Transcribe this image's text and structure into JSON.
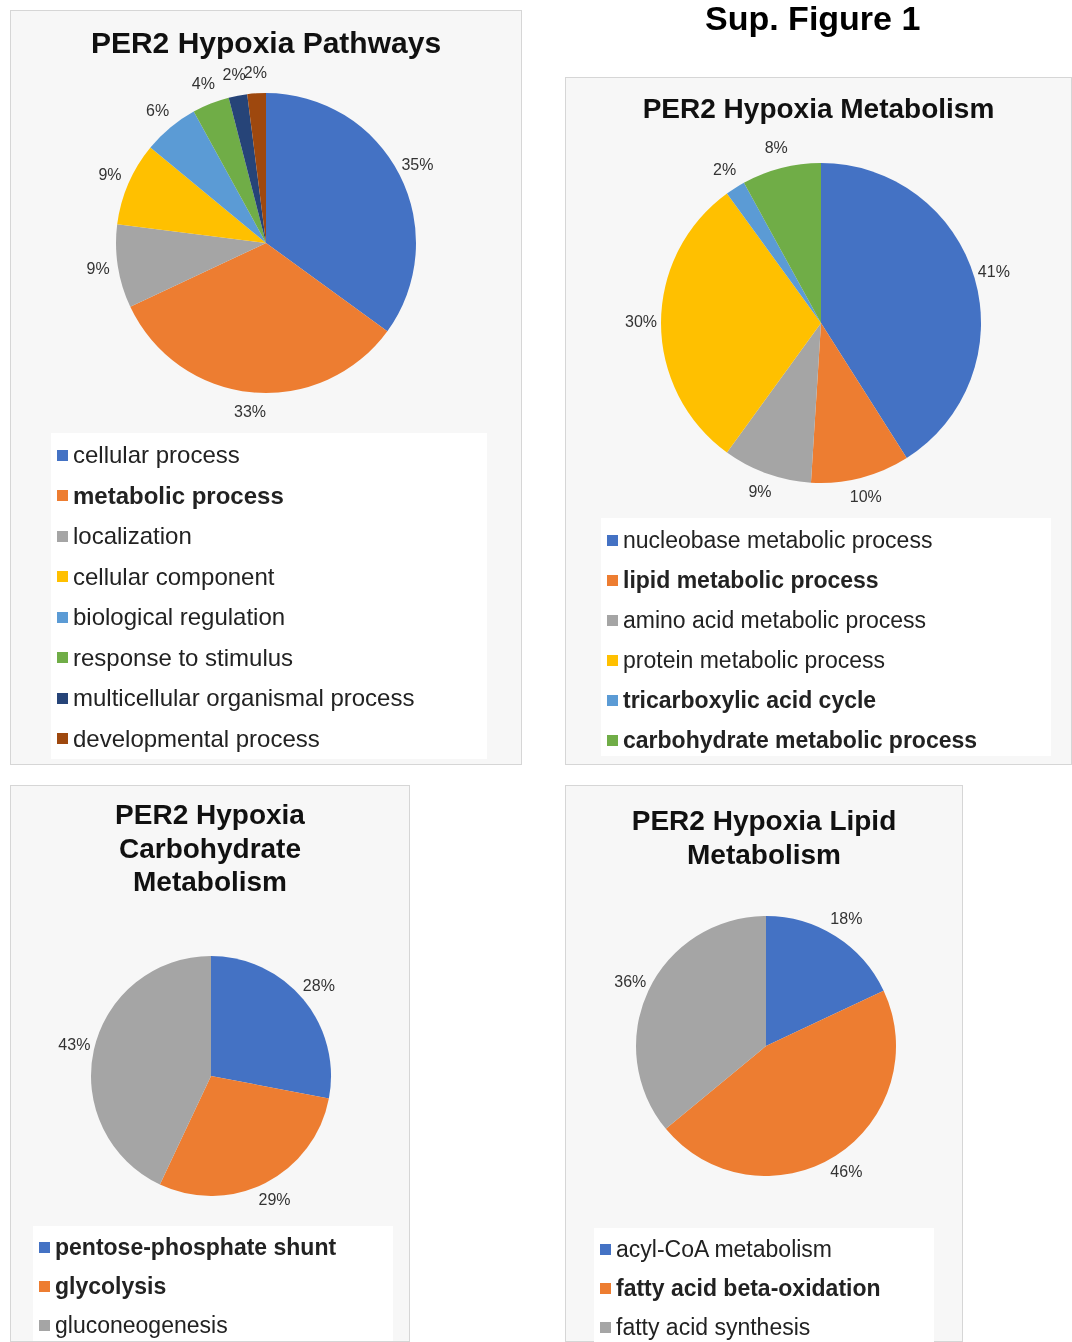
{
  "chart_data": [
    {
      "type": "pie",
      "title": "PER2 Hypoxia Pathways",
      "categories": [
        "cellular process",
        "metabolic process",
        "localization",
        "cellular component",
        "biological regulation",
        "response to stimulus",
        "multicellular organismal process",
        "developmental process"
      ],
      "values": [
        35,
        33,
        9,
        9,
        6,
        4,
        2,
        2
      ],
      "value_labels": [
        "35%",
        "33%",
        "9%",
        "9%",
        "6%",
        "4%",
        "2%",
        "2%"
      ],
      "colors": [
        "#4472c4",
        "#ed7d31",
        "#a5a5a5",
        "#ffc000",
        "#5b9bd5",
        "#70ad47",
        "#264478",
        "#9e480e"
      ],
      "legend": "bottom"
    },
    {
      "type": "pie",
      "title": "PER2 Hypoxia Metabolism",
      "annotations": [
        "Sup. Figure 1"
      ],
      "categories": [
        "nucleobase metabolic process",
        "lipid metabolic process",
        "amino acid metabolic process",
        "protein metabolic process",
        "tricarboxylic acid cycle",
        "carbohydrate metabolic process"
      ],
      "values": [
        41,
        10,
        9,
        30,
        2,
        8
      ],
      "value_labels": [
        "41%",
        "10%",
        "9%",
        "30%",
        "2%",
        "8%"
      ],
      "colors": [
        "#4472c4",
        "#ed7d31",
        "#a5a5a5",
        "#ffc000",
        "#5b9bd5",
        "#70ad47"
      ],
      "legend": "bottom"
    },
    {
      "type": "pie",
      "title": "PER2 Hypoxia Carbohydrate Metabolism",
      "categories": [
        "pentose-phosphate shunt",
        "glycolysis",
        "gluconeogenesis"
      ],
      "values": [
        28,
        29,
        43
      ],
      "value_labels": [
        "28%",
        "29%",
        "43%"
      ],
      "colors": [
        "#4472c4",
        "#ed7d31",
        "#a5a5a5"
      ],
      "legend": "bottom"
    },
    {
      "type": "pie",
      "title": "PER2 Hypoxia Lipid Metabolism",
      "categories": [
        "acyl-CoA metabolism",
        "fatty acid beta-oxidation",
        "fatty acid synthesis"
      ],
      "values": [
        18,
        46,
        36
      ],
      "value_labels": [
        "18%",
        "46%",
        "36%"
      ],
      "colors": [
        "#4472c4",
        "#ed7d31",
        "#a5a5a5"
      ],
      "legend": "bottom"
    }
  ]
}
